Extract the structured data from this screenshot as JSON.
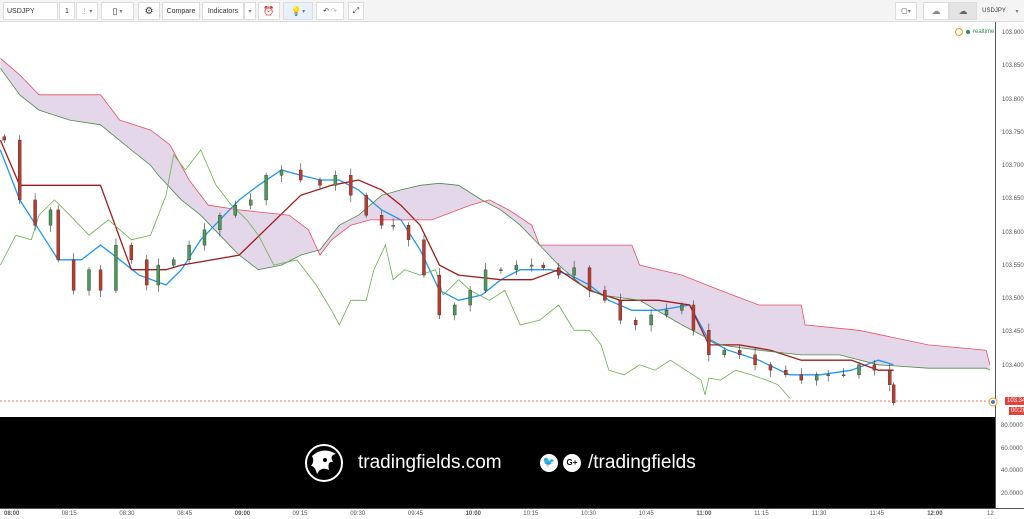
{
  "toolbar": {
    "symbol": "USDJPY",
    "interval": "1",
    "compare": "Compare",
    "indicators": "Indicators",
    "symbol_right": "USDJPY"
  },
  "legend": {
    "status": "realtime"
  },
  "colors": {
    "up": "#4a9a5a",
    "down": "#c0392b",
    "kijun": "#a01c1c",
    "tenkan": "#2196f3",
    "chikou": "#6ab04c",
    "span_a": "#e94f64",
    "span_b": "#4c8a4c",
    "cloud": "rgba(160,110,180,0.28)",
    "last": "#e0433b"
  },
  "price_axis": {
    "labels": [
      "103.900",
      "103.850",
      "103.800",
      "103.750",
      "103.700",
      "103.650",
      "103.600",
      "103.550",
      "103.500",
      "103.450",
      "103.400"
    ],
    "last_price": "103.344",
    "countdown": "00:26"
  },
  "lower_axis": {
    "labels": [
      "80.0000",
      "60.0000",
      "40.0000",
      "20.0000"
    ]
  },
  "time_axis": {
    "labels": [
      "08:00",
      "08:15",
      "08:30",
      "08:45",
      "09:00",
      "09:15",
      "09:30",
      "09:45",
      "10:00",
      "10:15",
      "10:30",
      "10:45",
      "11:00",
      "11:15",
      "11:30",
      "11:45",
      "12:00",
      "12"
    ]
  },
  "banner": {
    "site": "tradingfields.com",
    "handle": "/tradingfields",
    "icons": [
      "lion-logo-icon",
      "twitter-icon",
      "google-plus-icon"
    ]
  },
  "chart_data": {
    "type": "candlestick",
    "ylim": [
      103.33,
      103.91
    ],
    "xlim": [
      "07:57",
      "12:15"
    ],
    "closes": {
      "t": [
        "07:58",
        "08:02",
        "08:06",
        "08:10",
        "08:12",
        "08:16",
        "08:20",
        "08:23",
        "08:27",
        "08:31",
        "08:35",
        "08:38",
        "08:42",
        "08:46",
        "08:50",
        "08:54",
        "08:58",
        "09:02",
        "09:06",
        "09:10",
        "09:15",
        "09:20",
        "09:24",
        "09:28",
        "09:32",
        "09:36",
        "09:39",
        "09:43",
        "09:47",
        "09:51",
        "09:55",
        "09:59",
        "10:03",
        "10:07",
        "10:11",
        "10:15",
        "10:18",
        "10:22",
        "10:26",
        "10:30",
        "10:34",
        "10:38",
        "10:42",
        "10:46",
        "10:50",
        "10:54",
        "10:57",
        "11:01",
        "11:05",
        "11:09",
        "11:13",
        "11:17",
        "11:21",
        "11:25",
        "11:29",
        "11:32",
        "11:36",
        "11:40",
        "11:44",
        "11:48",
        "11:49"
      ],
      "p": [
        103.739,
        103.649,
        103.611,
        103.634,
        103.559,
        103.513,
        103.544,
        103.513,
        103.581,
        103.559,
        103.521,
        103.551,
        103.559,
        103.581,
        103.604,
        103.626,
        103.641,
        103.649,
        103.686,
        103.694,
        103.679,
        103.671,
        103.686,
        103.656,
        103.626,
        103.611,
        103.611,
        103.589,
        103.536,
        103.476,
        103.491,
        103.513,
        103.544,
        103.544,
        103.551,
        103.551,
        103.547,
        103.536,
        103.547,
        103.513,
        103.498,
        103.468,
        103.461,
        103.476,
        103.483,
        103.491,
        103.453,
        103.416,
        103.423,
        103.416,
        103.401,
        103.393,
        103.386,
        103.378,
        103.386,
        103.386,
        103.386,
        103.401,
        103.393,
        103.371,
        103.344
      ]
    },
    "series": [
      {
        "key": "tenkan",
        "t": [
          "07:57",
          "08:02",
          "08:07",
          "08:12",
          "08:18",
          "08:23",
          "08:28",
          "08:33",
          "08:40",
          "08:44",
          "08:49",
          "08:54",
          "08:59",
          "09:04",
          "09:10",
          "09:15",
          "09:20",
          "09:25",
          "09:30",
          "09:36",
          "09:41",
          "09:46",
          "09:51",
          "09:56",
          "10:02",
          "10:07",
          "10:12",
          "10:20",
          "10:25",
          "10:30",
          "10:35",
          "10:41",
          "10:48",
          "10:56",
          "11:01",
          "11:06",
          "11:14",
          "11:22",
          "11:30",
          "11:38",
          "11:45",
          "11:49"
        ],
        "p": [
          103.724,
          103.649,
          103.604,
          103.559,
          103.559,
          103.581,
          103.559,
          103.536,
          103.521,
          103.544,
          103.589,
          103.619,
          103.649,
          103.671,
          103.694,
          103.686,
          103.679,
          103.679,
          103.664,
          103.634,
          103.619,
          103.574,
          103.513,
          103.498,
          103.506,
          103.529,
          103.544,
          103.544,
          103.536,
          103.521,
          103.498,
          103.483,
          103.483,
          103.491,
          103.438,
          103.423,
          103.408,
          103.386,
          103.386,
          103.393,
          103.408,
          103.401
        ]
      },
      {
        "key": "kijun",
        "t": [
          "07:57",
          "08:02",
          "08:23",
          "08:31",
          "08:40",
          "08:44",
          "08:59",
          "09:07",
          "09:15",
          "09:23",
          "09:30",
          "09:36",
          "09:41",
          "09:46",
          "09:51",
          "09:56",
          "10:07",
          "10:15",
          "10:22",
          "10:30",
          "10:38",
          "10:48",
          "10:56",
          "11:01",
          "11:09",
          "11:17",
          "11:25",
          "11:38",
          "11:45",
          "11:49"
        ],
        "p": [
          103.739,
          103.671,
          103.671,
          103.544,
          103.544,
          103.551,
          103.566,
          103.611,
          103.656,
          103.671,
          103.679,
          103.664,
          103.641,
          103.611,
          103.551,
          103.536,
          103.529,
          103.529,
          103.544,
          103.513,
          103.498,
          103.498,
          103.491,
          103.431,
          103.431,
          103.423,
          103.408,
          103.408,
          103.393,
          103.393
        ]
      },
      {
        "key": "span_a",
        "t": [
          "07:57",
          "08:02",
          "08:07",
          "08:23",
          "08:28",
          "08:36",
          "08:41",
          "08:46",
          "08:51",
          "08:59",
          "09:12",
          "09:17",
          "09:20",
          "09:23",
          "09:28",
          "09:33",
          "09:41",
          "09:49",
          "09:59",
          "10:04",
          "10:09",
          "10:15",
          "10:17",
          "10:28",
          "10:41",
          "10:43",
          "10:54",
          "11:04",
          "11:14",
          "11:25",
          "11:26",
          "11:40",
          "11:58",
          "12:13",
          "12:14"
        ],
        "p": [
          103.862,
          103.837,
          103.807,
          103.807,
          103.769,
          103.754,
          103.732,
          103.679,
          103.641,
          103.634,
          103.626,
          103.604,
          103.566,
          103.589,
          103.611,
          103.619,
          103.619,
          103.619,
          103.641,
          103.649,
          103.634,
          103.611,
          103.581,
          103.581,
          103.581,
          103.551,
          103.536,
          103.513,
          103.491,
          103.491,
          103.461,
          103.453,
          103.431,
          103.423,
          103.401
        ]
      },
      {
        "key": "span_b",
        "t": [
          "07:57",
          "08:02",
          "08:07",
          "08:15",
          "08:23",
          "08:31",
          "08:36",
          "08:38",
          "08:44",
          "08:49",
          "08:54",
          "08:59",
          "09:04",
          "09:10",
          "09:15",
          "09:20",
          "09:25",
          "09:30",
          "09:36",
          "09:41",
          "09:46",
          "09:51",
          "09:56",
          "10:02",
          "10:07",
          "10:12",
          "10:17",
          "10:22",
          "10:28",
          "10:33",
          "10:43",
          "10:54",
          "10:59",
          "11:04",
          "11:14",
          "11:25",
          "11:35",
          "11:45",
          "11:58",
          "12:13",
          "12:14"
        ],
        "p": [
          103.847,
          103.807,
          103.784,
          103.769,
          103.762,
          103.724,
          103.701,
          103.686,
          103.649,
          103.626,
          103.596,
          103.566,
          103.544,
          103.551,
          103.566,
          103.574,
          103.611,
          103.626,
          103.656,
          103.664,
          103.671,
          103.674,
          103.671,
          103.649,
          103.634,
          103.611,
          103.581,
          103.551,
          103.521,
          103.506,
          103.498,
          103.461,
          103.446,
          103.431,
          103.423,
          103.416,
          103.416,
          103.401,
          103.396,
          103.396,
          103.393
        ]
      },
      {
        "key": "chikou",
        "t": [
          "07:57",
          "08:01",
          "08:05",
          "08:07",
          "08:11",
          "08:15",
          "08:20",
          "08:25",
          "08:31",
          "08:36",
          "08:40",
          "08:42",
          "08:45",
          "08:49",
          "08:53",
          "08:57",
          "09:01",
          "09:04",
          "09:08",
          "09:14",
          "09:19",
          "09:23",
          "09:25",
          "09:28",
          "09:32",
          "09:34",
          "09:37",
          "09:39",
          "09:42",
          "09:46",
          "09:50",
          "09:52",
          "09:56",
          "09:59",
          "10:04",
          "10:08",
          "10:12",
          "10:17",
          "10:22",
          "10:26",
          "10:30",
          "10:33",
          "10:35",
          "10:39",
          "10:43",
          "10:47",
          "10:51",
          "10:55",
          "10:59",
          "11:00",
          "11:01",
          "11:04",
          "11:08",
          "11:12",
          "11:16",
          "11:19",
          "11:22"
        ],
        "p": [
          103.551,
          103.596,
          103.589,
          103.626,
          103.649,
          103.626,
          103.596,
          103.619,
          103.589,
          103.596,
          103.656,
          103.717,
          103.694,
          103.724,
          103.671,
          103.641,
          103.619,
          103.596,
          103.551,
          103.559,
          103.521,
          103.483,
          103.461,
          103.498,
          103.498,
          103.544,
          103.581,
          103.529,
          103.544,
          103.536,
          103.544,
          103.506,
          103.529,
          103.513,
          103.498,
          103.513,
          103.461,
          103.468,
          103.491,
          103.453,
          103.453,
          103.431,
          103.393,
          103.386,
          103.401,
          103.393,
          103.408,
          103.393,
          103.378,
          103.356,
          103.381,
          103.378,
          103.393,
          103.386,
          103.378,
          103.371,
          103.351
        ]
      }
    ]
  }
}
